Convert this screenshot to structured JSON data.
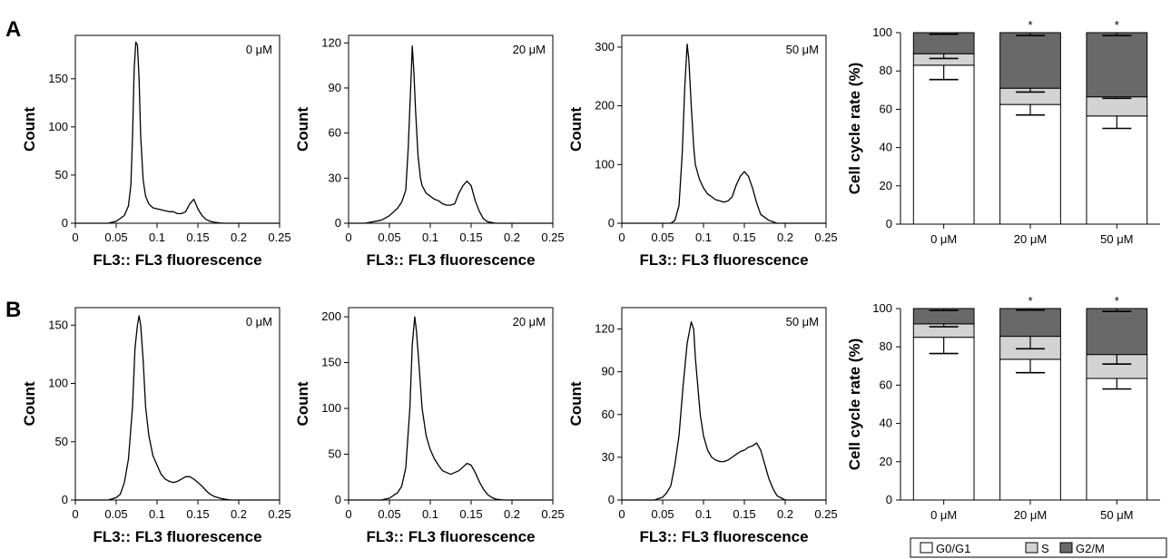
{
  "panel_labels": [
    "A",
    "B"
  ],
  "colors": {
    "g0g1": "#ffffff",
    "s": "#d3d3d3",
    "g2m": "#696969",
    "line": "#000000"
  },
  "legend": {
    "items": [
      "G0/G1",
      "S",
      "G2/M"
    ]
  },
  "chart_data": [
    {
      "type": "line",
      "row": "A",
      "label": "0 μM",
      "xlabel": "FL3:: FL3 fluorescence",
      "ylabel": "Count",
      "xlim": [
        0,
        0.25
      ],
      "xticks": [
        "0",
        "0.05",
        "0.1",
        "0.15",
        "0.2",
        "0.25"
      ],
      "ylim": [
        0,
        195
      ],
      "yticks": [
        0,
        50,
        100,
        150
      ],
      "x": [
        0,
        0.02,
        0.04,
        0.05,
        0.06,
        0.065,
        0.068,
        0.07,
        0.072,
        0.074,
        0.076,
        0.078,
        0.08,
        0.083,
        0.086,
        0.09,
        0.095,
        0.1,
        0.105,
        0.11,
        0.115,
        0.12,
        0.125,
        0.13,
        0.135,
        0.14,
        0.145,
        0.15,
        0.155,
        0.16,
        0.165,
        0.17,
        0.18,
        0.2,
        0.25
      ],
      "y": [
        0,
        0,
        0,
        2,
        8,
        18,
        40,
        90,
        160,
        188,
        185,
        150,
        90,
        45,
        28,
        20,
        16,
        15,
        14,
        13,
        12,
        12,
        10,
        10,
        12,
        20,
        25,
        15,
        8,
        4,
        2,
        1,
        0,
        0,
        0
      ]
    },
    {
      "type": "line",
      "row": "A",
      "label": "20 μM",
      "xlabel": "FL3:: FL3 fluorescence",
      "ylabel": "Count",
      "xlim": [
        0,
        0.25
      ],
      "xticks": [
        "0",
        "0.05",
        "0.1",
        "0.15",
        "0.2",
        "0.25"
      ],
      "ylim": [
        0,
        125
      ],
      "yticks": [
        0,
        30,
        60,
        90,
        120
      ],
      "x": [
        0,
        0.02,
        0.04,
        0.05,
        0.06,
        0.065,
        0.07,
        0.073,
        0.076,
        0.078,
        0.08,
        0.082,
        0.085,
        0.088,
        0.09,
        0.095,
        0.1,
        0.105,
        0.11,
        0.115,
        0.12,
        0.125,
        0.13,
        0.135,
        0.14,
        0.145,
        0.15,
        0.155,
        0.16,
        0.165,
        0.17,
        0.18,
        0.25
      ],
      "y": [
        0,
        0,
        2,
        5,
        10,
        14,
        22,
        50,
        90,
        118,
        100,
        75,
        45,
        30,
        25,
        20,
        18,
        16,
        15,
        13,
        12,
        12,
        13,
        20,
        25,
        28,
        25,
        15,
        8,
        3,
        1,
        0,
        0
      ]
    },
    {
      "type": "line",
      "row": "A",
      "label": "50 μM",
      "xlabel": "FL3:: FL3 fluorescence",
      "ylabel": "Count",
      "xlim": [
        0,
        0.25
      ],
      "xticks": [
        "0",
        "0.05",
        "0.1",
        "0.15",
        "0.2",
        "0.25"
      ],
      "ylim": [
        0,
        320
      ],
      "yticks": [
        0,
        100,
        200,
        300
      ],
      "x": [
        0,
        0.04,
        0.06,
        0.065,
        0.07,
        0.074,
        0.077,
        0.08,
        0.082,
        0.085,
        0.088,
        0.09,
        0.095,
        0.1,
        0.105,
        0.11,
        0.115,
        0.12,
        0.125,
        0.13,
        0.135,
        0.14,
        0.145,
        0.15,
        0.155,
        0.16,
        0.165,
        0.17,
        0.18,
        0.19,
        0.25
      ],
      "y": [
        0,
        0,
        0,
        5,
        30,
        120,
        230,
        305,
        280,
        200,
        130,
        100,
        75,
        60,
        50,
        45,
        40,
        38,
        36,
        38,
        45,
        65,
        80,
        88,
        80,
        60,
        35,
        15,
        5,
        0,
        0
      ]
    },
    {
      "type": "bar",
      "row": "A",
      "stacked": true,
      "categories": [
        "0 μM",
        "20 μM",
        "50 μM"
      ],
      "ylabel": "Cell cycle rate (%)",
      "ylim": [
        0,
        100
      ],
      "yticks": [
        0,
        20,
        40,
        60,
        80,
        100
      ],
      "significance": [
        "",
        "*",
        "*"
      ],
      "series": [
        {
          "name": "G0/G1",
          "values": [
            83,
            62.5,
            56.5
          ],
          "error": [
            7.5,
            5.5,
            6.5
          ]
        },
        {
          "name": "S",
          "values": [
            6,
            8.5,
            10
          ],
          "error": [
            2.5,
            2,
            0.8
          ]
        },
        {
          "name": "G2/M",
          "values": [
            11,
            29,
            33.5
          ],
          "error": [
            0.8,
            1.5,
            1.5
          ]
        }
      ]
    },
    {
      "type": "line",
      "row": "B",
      "label": "0 μM",
      "xlabel": "FL3:: FL3 fluorescence",
      "ylabel": "Count",
      "xlim": [
        0,
        0.25
      ],
      "xticks": [
        "0",
        "0.05",
        "0.1",
        "0.15",
        "0.2",
        "0.25"
      ],
      "ylim": [
        0,
        165
      ],
      "yticks": [
        0,
        50,
        100,
        150
      ],
      "x": [
        0,
        0.04,
        0.05,
        0.055,
        0.06,
        0.065,
        0.07,
        0.073,
        0.076,
        0.078,
        0.08,
        0.083,
        0.086,
        0.09,
        0.095,
        0.1,
        0.105,
        0.11,
        0.115,
        0.12,
        0.125,
        0.13,
        0.135,
        0.14,
        0.145,
        0.15,
        0.155,
        0.16,
        0.165,
        0.17,
        0.18,
        0.19,
        0.25
      ],
      "y": [
        0,
        0,
        2,
        5,
        15,
        35,
        80,
        130,
        150,
        158,
        150,
        120,
        80,
        55,
        38,
        30,
        22,
        18,
        16,
        15,
        16,
        18,
        20,
        20,
        18,
        15,
        12,
        8,
        5,
        3,
        1,
        0,
        0
      ]
    },
    {
      "type": "line",
      "row": "B",
      "label": "20 μM",
      "xlabel": "FL3:: FL3 fluorescence",
      "ylabel": "Count",
      "xlim": [
        0,
        0.25
      ],
      "xticks": [
        "0",
        "0.05",
        "0.1",
        "0.15",
        "0.2",
        "0.25"
      ],
      "ylim": [
        0,
        210
      ],
      "yticks": [
        0,
        50,
        100,
        150,
        200
      ],
      "x": [
        0,
        0.04,
        0.05,
        0.06,
        0.065,
        0.07,
        0.075,
        0.078,
        0.081,
        0.083,
        0.086,
        0.09,
        0.095,
        0.1,
        0.105,
        0.11,
        0.115,
        0.12,
        0.125,
        0.13,
        0.135,
        0.14,
        0.145,
        0.15,
        0.155,
        0.16,
        0.165,
        0.17,
        0.175,
        0.18,
        0.19,
        0.25
      ],
      "y": [
        0,
        0,
        2,
        8,
        15,
        35,
        100,
        170,
        200,
        185,
        150,
        100,
        70,
        55,
        45,
        38,
        32,
        30,
        28,
        30,
        32,
        36,
        40,
        38,
        30,
        20,
        12,
        6,
        3,
        1,
        0,
        0
      ]
    },
    {
      "type": "line",
      "row": "B",
      "label": "50 μM",
      "xlabel": "FL3:: FL3 fluorescence",
      "ylabel": "Count",
      "xlim": [
        0,
        0.25
      ],
      "xticks": [
        "0",
        "0.05",
        "0.1",
        "0.15",
        "0.2",
        "0.25"
      ],
      "ylim": [
        0,
        135
      ],
      "yticks": [
        0,
        30,
        60,
        90,
        120
      ],
      "x": [
        0,
        0.04,
        0.05,
        0.055,
        0.06,
        0.065,
        0.07,
        0.075,
        0.08,
        0.085,
        0.088,
        0.09,
        0.093,
        0.096,
        0.1,
        0.105,
        0.11,
        0.115,
        0.12,
        0.125,
        0.13,
        0.135,
        0.14,
        0.145,
        0.15,
        0.155,
        0.16,
        0.165,
        0.17,
        0.175,
        0.18,
        0.185,
        0.19,
        0.2,
        0.25
      ],
      "y": [
        0,
        0,
        2,
        5,
        10,
        25,
        45,
        80,
        110,
        125,
        120,
        100,
        80,
        60,
        45,
        35,
        30,
        28,
        27,
        27,
        28,
        30,
        32,
        34,
        35,
        37,
        38,
        40,
        35,
        25,
        15,
        8,
        3,
        0,
        0
      ]
    },
    {
      "type": "bar",
      "row": "B",
      "stacked": true,
      "categories": [
        "0 μM",
        "20 μM",
        "50 μM"
      ],
      "ylabel": "Cell cycle rate (%)",
      "ylim": [
        0,
        100
      ],
      "yticks": [
        0,
        20,
        40,
        60,
        80,
        100
      ],
      "significance": [
        "",
        "*",
        "*"
      ],
      "series": [
        {
          "name": "G0/G1",
          "values": [
            85,
            73.5,
            63.5
          ],
          "error": [
            8.5,
            7,
            5.5
          ]
        },
        {
          "name": "S",
          "values": [
            7,
            12,
            12.5
          ],
          "error": [
            1.5,
            6.5,
            5
          ]
        },
        {
          "name": "G2/M",
          "values": [
            8,
            14.5,
            24
          ],
          "error": [
            1,
            0.8,
            1.5
          ]
        }
      ]
    }
  ]
}
